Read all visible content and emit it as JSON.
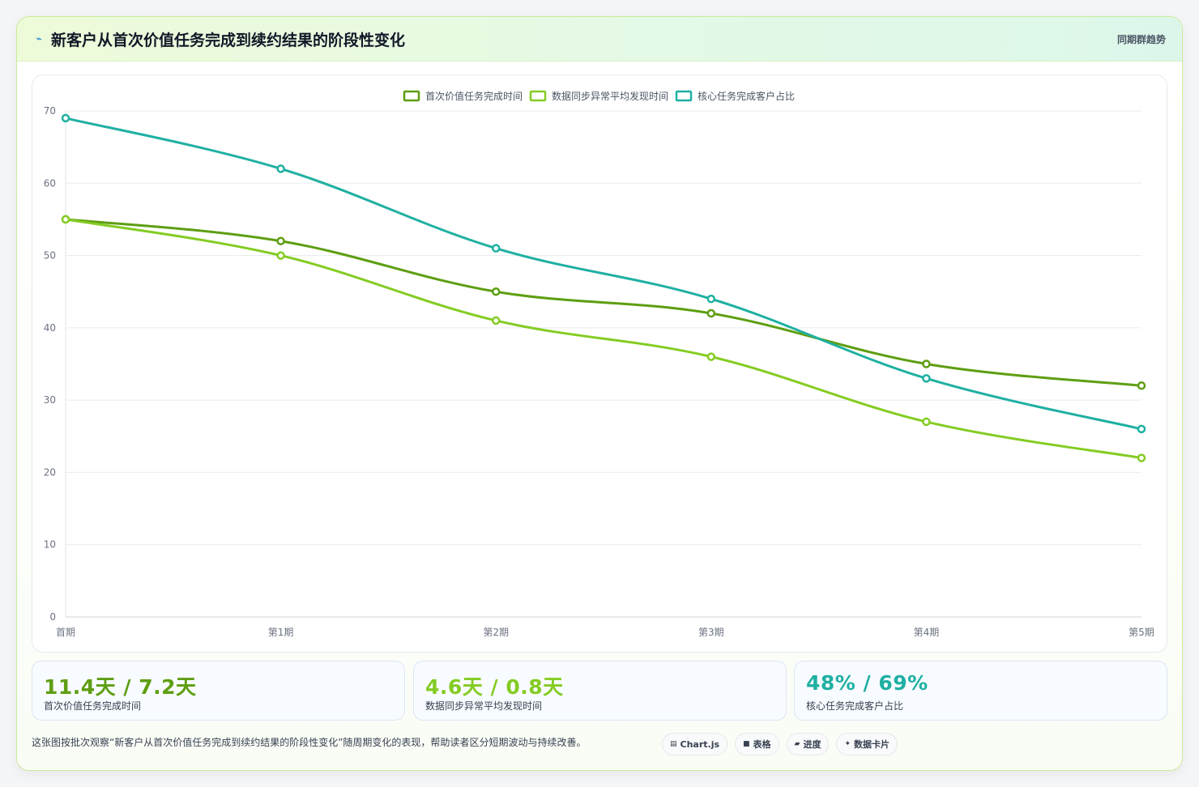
{
  "header": {
    "title": "新客户从首次价值任务完成到续约结果的阶段性变化",
    "title_icon": "trend-icon",
    "tag": "同期群趋势"
  },
  "chart_data": {
    "type": "line",
    "title": "",
    "xlabel": "",
    "ylabel": "",
    "ylim": [
      0,
      70
    ],
    "y_ticks": [
      0,
      10,
      20,
      30,
      40,
      50,
      60,
      70
    ],
    "grid": true,
    "legend_position": "top-center",
    "categories": [
      "首期",
      "第1期",
      "第2期",
      "第3期",
      "第4期",
      "第5期"
    ],
    "series": [
      {
        "name": "首次价值任务完成时间",
        "color": "#5e9e12",
        "values": [
          55,
          52,
          45,
          42,
          35,
          32
        ]
      },
      {
        "name": "数据同步异常平均发现时间",
        "color": "#84cc23",
        "values": [
          55,
          50,
          41,
          36,
          27,
          22
        ]
      },
      {
        "name": "核心任务完成客户占比",
        "color": "#1fb0a2",
        "values": [
          69,
          62,
          51,
          44,
          33,
          26
        ]
      }
    ]
  },
  "kpis": [
    {
      "value": "11.4天 / 7.2天",
      "label": "首次价值任务完成时间",
      "color": "#5e9e12"
    },
    {
      "value": "4.6天 / 0.8天",
      "label": "数据同步异常平均发现时间",
      "color": "#84cc23"
    },
    {
      "value": "48% / 69%",
      "label": "核心任务完成客户占比",
      "color": "#1fb0a2"
    }
  ],
  "footer": {
    "note": "这张图按批次观察“新客户从首次价值任务完成到续约结果的阶段性变化”随周期变化的表现，帮助读者区分短期波动与持续改善。",
    "tags": [
      {
        "icon": "chart-icon",
        "glyph": "▤",
        "label": "Chart.js"
      },
      {
        "icon": "table-icon",
        "glyph": "■",
        "label": "表格"
      },
      {
        "icon": "progress-icon",
        "glyph": "▰",
        "label": "进度"
      },
      {
        "icon": "sparkle-icon",
        "glyph": "✦",
        "label": "数据卡片"
      }
    ]
  }
}
